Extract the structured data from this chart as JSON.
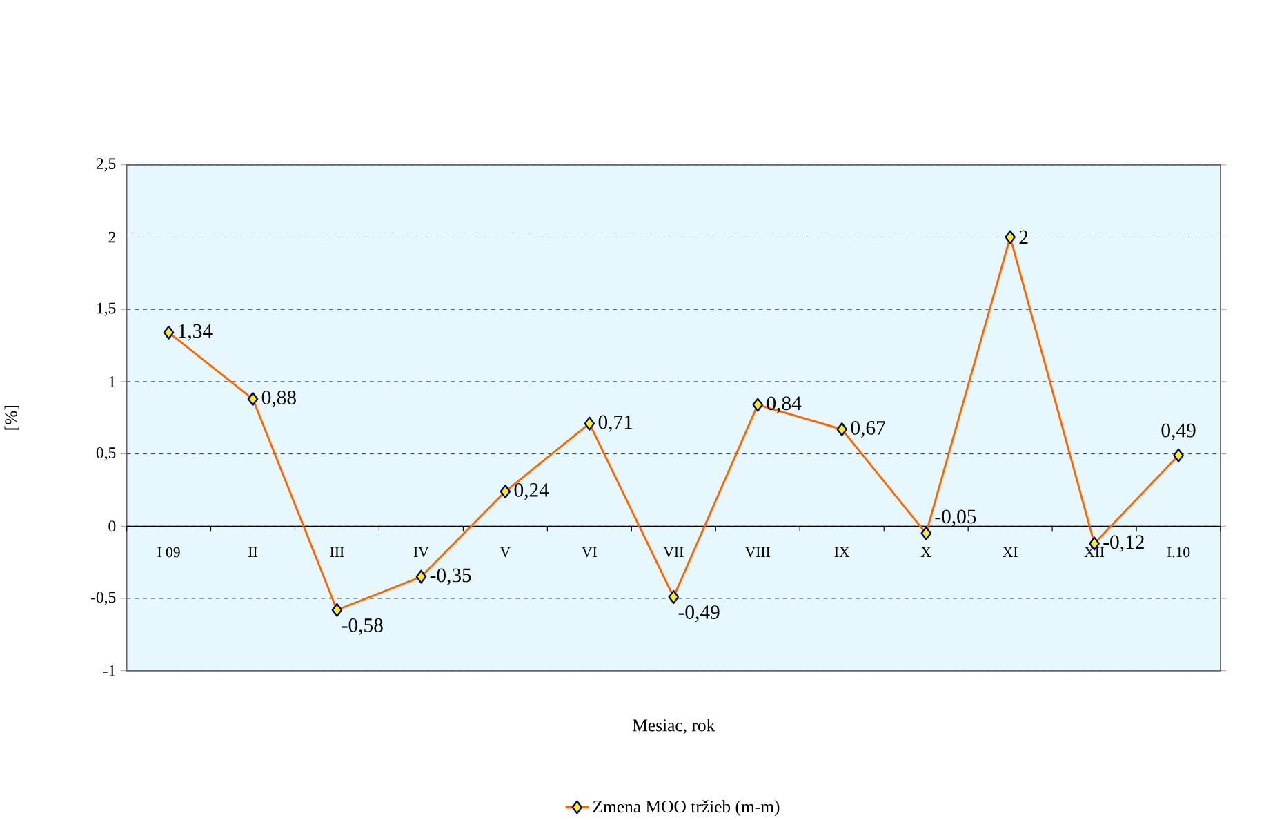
{
  "chart_data": {
    "type": "line",
    "xlabel": "Mesiac, rok",
    "ylabel": "[%]",
    "categories": [
      "I 09",
      "II",
      "III",
      "IV",
      "V",
      "VI",
      "VII",
      "VIII",
      "IX",
      "X",
      "XI",
      "XII",
      "I.10"
    ],
    "series": [
      {
        "name": "Zmena MOO tržieb (m-m)",
        "color": "#ff6600",
        "values": [
          1.34,
          0.88,
          -0.58,
          -0.35,
          0.24,
          0.71,
          -0.49,
          0.84,
          0.67,
          -0.05,
          2,
          -0.12,
          0.49
        ],
        "value_labels": [
          "1,34",
          "0,88",
          "-0,58",
          "-0,35",
          "0,24",
          "0,71",
          "-0,49",
          "0,84",
          "0,67",
          "-0,05",
          "2",
          "-0,12",
          "0,49"
        ]
      }
    ],
    "ylim": [
      -1,
      2.5
    ],
    "yticks": [
      {
        "value": -1,
        "label": "-1"
      },
      {
        "value": -0.5,
        "label": "-0,5"
      },
      {
        "value": 0,
        "label": "0"
      },
      {
        "value": 0.5,
        "label": "0,5"
      },
      {
        "value": 1,
        "label": "1"
      },
      {
        "value": 1.5,
        "label": "1,5"
      },
      {
        "value": 2,
        "label": "2"
      },
      {
        "value": 2.5,
        "label": "2,5"
      }
    ],
    "grid": "y",
    "legend": "bottom",
    "marker": "diamond",
    "line_style": "solid"
  }
}
